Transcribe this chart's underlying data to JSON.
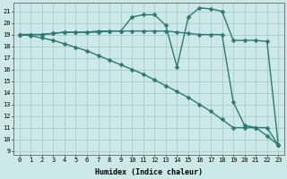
{
  "line1": {
    "x": [
      0,
      1,
      2,
      3,
      4,
      5,
      6,
      7,
      8,
      9,
      10,
      11,
      12,
      13,
      14,
      15,
      16,
      17,
      18,
      19,
      20,
      21,
      22,
      23
    ],
    "y": [
      19.0,
      18.9,
      18.7,
      18.5,
      18.2,
      17.9,
      17.6,
      17.2,
      16.8,
      16.4,
      16.0,
      15.6,
      15.1,
      14.6,
      14.1,
      13.6,
      13.0,
      12.4,
      11.7,
      11.0,
      11.0,
      11.0,
      10.3,
      9.5
    ]
  },
  "line2": {
    "x": [
      0,
      1,
      2,
      3,
      4,
      5,
      6,
      7,
      8,
      9,
      10,
      11,
      12,
      13,
      14,
      15,
      16,
      17,
      18,
      19,
      20,
      21,
      22,
      23
    ],
    "y": [
      19.0,
      19.0,
      19.0,
      19.1,
      19.2,
      19.2,
      19.2,
      19.2,
      19.3,
      19.3,
      20.5,
      20.7,
      20.7,
      19.8,
      16.2,
      20.5,
      21.3,
      21.2,
      21.0,
      18.5,
      18.5,
      18.5,
      18.4,
      9.5
    ]
  },
  "line3": {
    "x": [
      0,
      1,
      2,
      3,
      4,
      5,
      6,
      7,
      8,
      9,
      10,
      11,
      12,
      13,
      14,
      15,
      16,
      17,
      18,
      19,
      20,
      21,
      22,
      23
    ],
    "y": [
      19.0,
      19.0,
      19.0,
      19.1,
      19.2,
      19.2,
      19.2,
      19.3,
      19.3,
      19.3,
      19.3,
      19.3,
      19.3,
      19.3,
      19.2,
      19.1,
      19.0,
      19.0,
      19.0,
      13.2,
      11.2,
      11.0,
      11.0,
      9.5
    ]
  },
  "color": "#2d7a6e",
  "bg_color": "#cde8e8",
  "grid_color": "#a0c8c8",
  "xlabel": "Humidex (Indice chaleur)",
  "xlim": [
    -0.5,
    23.5
  ],
  "ylim": [
    8.7,
    21.7
  ],
  "yticks": [
    9,
    10,
    11,
    12,
    13,
    14,
    15,
    16,
    17,
    18,
    19,
    20,
    21
  ],
  "xticks": [
    0,
    1,
    2,
    3,
    4,
    5,
    6,
    7,
    8,
    9,
    10,
    11,
    12,
    13,
    14,
    15,
    16,
    17,
    18,
    19,
    20,
    21,
    22,
    23
  ],
  "markersize": 2.5,
  "linewidth": 1.0,
  "font_family": "monospace",
  "tick_fontsize": 5.0,
  "xlabel_fontsize": 6.0
}
